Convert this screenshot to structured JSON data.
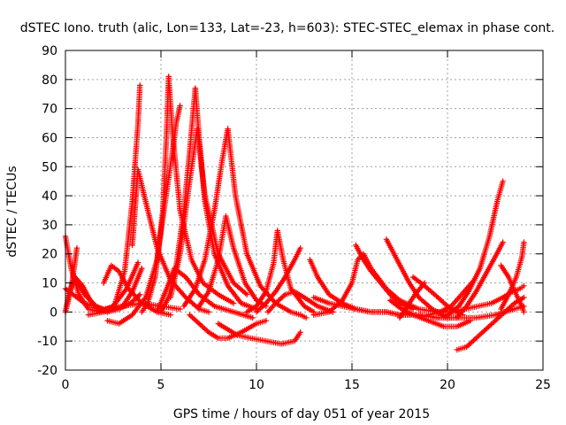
{
  "chart_data": {
    "type": "scatter",
    "title": "dSTEC Iono. truth (alic, Lon=133, Lat=-23, h=603): STEC-STEC_elemax in phase cont.",
    "xlabel": "GPS time / hours of day 051 of year 2015",
    "ylabel": "dSTEC  / TECUs",
    "xlim": [
      0,
      25
    ],
    "ylim": [
      -20,
      90
    ],
    "xticks": [
      0,
      5,
      10,
      15,
      20,
      25
    ],
    "yticks": [
      -20,
      -10,
      0,
      10,
      20,
      30,
      40,
      50,
      60,
      70,
      80,
      90
    ],
    "xtick_labels": [
      "0",
      "5",
      "10",
      "15",
      "20",
      "25"
    ],
    "ytick_labels": [
      "-20",
      "-10",
      "0",
      "10",
      "20",
      "30",
      "40",
      "50",
      "60",
      "70",
      "80",
      "90"
    ],
    "grid": true,
    "marker": "+",
    "color": "#ff0000",
    "series": [
      {
        "x": [
          0.0,
          0.3,
          0.7,
          1.2,
          1.8,
          2.5,
          3.2,
          3.8
        ],
        "y": [
          26,
          15,
          6,
          1,
          0,
          2,
          8,
          17
        ]
      },
      {
        "x": [
          0.0,
          0.2,
          0.5,
          0.9,
          1.3,
          1.7,
          2.2,
          2.8,
          3.4,
          3.9
        ],
        "y": [
          0,
          7,
          12,
          9,
          4,
          1,
          0,
          1,
          3,
          6
        ]
      },
      {
        "x": [
          0.0,
          0.3,
          0.6
        ],
        "y": [
          0,
          8,
          22
        ]
      },
      {
        "x": [
          0.4,
          1.0,
          1.6,
          2.2,
          2.6,
          3.1,
          3.5,
          3.8,
          3.9
        ],
        "y": [
          13,
          6,
          2,
          0,
          3,
          14,
          38,
          65,
          78
        ]
      },
      {
        "x": [
          0.0,
          1.0,
          2.0,
          3.0,
          3.5,
          4.0
        ],
        "y": [
          8,
          3,
          1,
          2,
          7,
          15
        ]
      },
      {
        "x": [
          2.0,
          2.4,
          2.8,
          3.3,
          4.0,
          4.8,
          5.5
        ],
        "y": [
          10,
          16,
          14,
          8,
          3,
          0,
          -1
        ]
      },
      {
        "x": [
          2.2,
          2.8,
          3.5,
          4.2,
          4.8,
          5.2,
          5.6,
          5.8,
          6.0
        ],
        "y": [
          -3,
          -4,
          -1,
          5,
          18,
          37,
          55,
          65,
          71
        ]
      },
      {
        "x": [
          3.5,
          3.8,
          4.2,
          4.8,
          5.5,
          6.3,
          7.0,
          7.5
        ],
        "y": [
          23,
          49,
          38,
          22,
          11,
          5,
          1,
          0
        ]
      },
      {
        "x": [
          1.2,
          2.0,
          3.0,
          4.0,
          5.0,
          6.0
        ],
        "y": [
          -1,
          0,
          2,
          3,
          2,
          1
        ]
      },
      {
        "x": [
          4.0,
          4.3,
          4.7,
          5.1,
          5.3,
          5.4
        ],
        "y": [
          0,
          3,
          12,
          35,
          62,
          81
        ]
      },
      {
        "x": [
          5.4,
          5.6,
          6.0,
          6.6,
          7.2,
          8.0,
          8.8
        ],
        "y": [
          81,
          62,
          35,
          18,
          10,
          6,
          3
        ]
      },
      {
        "x": [
          4.8,
          5.3,
          5.7,
          6.3,
          7.0,
          7.8,
          8.8,
          9.8
        ],
        "y": [
          0,
          8,
          15,
          12,
          6,
          2,
          0,
          -2
        ]
      },
      {
        "x": [
          5.0,
          5.4,
          5.8,
          6.2,
          6.5,
          6.7,
          6.8
        ],
        "y": [
          0,
          5,
          16,
          35,
          55,
          70,
          77
        ]
      },
      {
        "x": [
          6.8,
          7.0,
          7.3,
          7.8,
          8.5,
          9.2,
          10.0
        ],
        "y": [
          77,
          60,
          38,
          20,
          9,
          3,
          1
        ]
      },
      {
        "x": [
          5.5,
          6.0,
          6.5,
          6.9,
          7.3,
          8.0,
          8.8,
          9.5
        ],
        "y": [
          5,
          20,
          45,
          63,
          40,
          20,
          10,
          6
        ]
      },
      {
        "x": [
          6.5,
          7.0,
          7.5,
          8.0,
          8.5,
          9.2,
          10.0,
          10.5
        ],
        "y": [
          -1,
          -4,
          -7,
          -9,
          -9,
          -7,
          -4,
          -3
        ]
      },
      {
        "x": [
          6.2,
          6.8,
          7.3,
          7.8,
          8.2,
          8.5
        ],
        "y": [
          2,
          8,
          18,
          35,
          52,
          63
        ]
      },
      {
        "x": [
          8.5,
          8.9,
          9.5,
          10.2,
          11.0,
          11.8,
          12.3,
          12.6
        ],
        "y": [
          63,
          40,
          20,
          9,
          3,
          0,
          -1,
          -2
        ]
      },
      {
        "x": [
          7.0,
          7.5,
          8.0,
          8.4,
          8.8,
          9.4,
          10.0,
          10.5
        ],
        "y": [
          2,
          7,
          18,
          33,
          22,
          10,
          4,
          2
        ]
      },
      {
        "x": [
          8.0,
          8.5,
          9.0,
          9.7,
          10.5,
          11.3,
          12.0,
          12.3
        ],
        "y": [
          -4,
          -6,
          -8,
          -9,
          -10,
          -11,
          -10,
          -7
        ]
      },
      {
        "x": [
          9.5,
          10.0,
          10.5,
          10.9,
          11.1,
          11.4,
          11.8,
          12.5,
          13.0
        ],
        "y": [
          0,
          2,
          7,
          17,
          28,
          18,
          8,
          2,
          0
        ]
      },
      {
        "x": [
          10.0,
          10.5,
          11.0,
          11.5,
          12.0,
          12.3
        ],
        "y": [
          0,
          3,
          7,
          12,
          18,
          22
        ]
      },
      {
        "x": [
          10.6,
          11.0,
          11.5,
          12.0,
          12.5,
          13.2,
          14.0
        ],
        "y": [
          0,
          3,
          6,
          7,
          5,
          2,
          0
        ]
      },
      {
        "x": [
          12.8,
          13.2,
          13.8,
          14.5,
          15.2,
          16.0,
          16.8,
          17.5,
          18.5,
          19.5,
          20.5
        ],
        "y": [
          18,
          12,
          6,
          3,
          1,
          0,
          0,
          -1,
          -1,
          -2,
          -2
        ]
      },
      {
        "x": [
          13.0,
          13.8,
          14.5,
          15.0,
          15.3,
          15.6,
          16.0,
          16.8,
          17.5,
          18.5,
          19.5,
          20.5
        ],
        "y": [
          -1,
          0,
          4,
          10,
          18,
          20,
          15,
          8,
          4,
          1,
          0,
          0
        ]
      },
      {
        "x": [
          13.0,
          13.8,
          14.5,
          15.2,
          16.0,
          16.8,
          17.5,
          18.5,
          19.5,
          20.5,
          21.5,
          22.5,
          23.5,
          24.0
        ],
        "y": [
          5,
          3,
          2,
          1,
          0,
          0,
          -1,
          -1,
          -2,
          -2,
          -2,
          -1,
          1,
          2
        ]
      },
      {
        "x": [
          15.2,
          15.6,
          16.0,
          16.5,
          17.0,
          17.5,
          18.2
        ],
        "y": [
          23,
          18,
          14,
          10,
          6,
          3,
          1
        ]
      },
      {
        "x": [
          16.8,
          17.2,
          17.6,
          18.0,
          18.5,
          19.2,
          20.0
        ],
        "y": [
          25,
          20,
          15,
          10,
          5,
          1,
          -2
        ]
      },
      {
        "x": [
          17.0,
          17.6,
          18.2,
          19.0,
          19.8,
          20.5,
          21.2
        ],
        "y": [
          4,
          1,
          -1,
          -3,
          -5,
          -5,
          -3
        ]
      },
      {
        "x": [
          17.5,
          17.9,
          18.3,
          18.8
        ],
        "y": [
          -2,
          2,
          6,
          10
        ]
      },
      {
        "x": [
          18.2,
          18.8,
          19.5,
          20.0,
          20.5,
          20.8
        ],
        "y": [
          12,
          9,
          5,
          2,
          0,
          -1
        ]
      },
      {
        "x": [
          19.0,
          19.6,
          20.2,
          20.6,
          21.0,
          21.4
        ],
        "y": [
          -1,
          0,
          2,
          5,
          8,
          11
        ]
      },
      {
        "x": [
          20.5,
          21.0,
          21.5,
          22.0,
          22.5,
          23.0,
          23.5,
          24.0
        ],
        "y": [
          -13,
          -12,
          -9,
          -6,
          -3,
          0,
          3,
          5
        ]
      },
      {
        "x": [
          19.5,
          20.2,
          20.9,
          21.6,
          22.3,
          22.9,
          23.4,
          23.8,
          24.0
        ],
        "y": [
          0,
          0,
          1,
          2,
          3,
          5,
          7,
          8,
          9
        ]
      },
      {
        "x": [
          20.0,
          20.6,
          21.1,
          21.7,
          22.2,
          22.6,
          22.9
        ],
        "y": [
          -1,
          2,
          7,
          15,
          26,
          38,
          45
        ]
      },
      {
        "x": [
          20.5,
          21.0,
          21.5,
          22.0,
          22.5,
          22.9
        ],
        "y": [
          -2,
          2,
          7,
          13,
          19,
          24
        ]
      },
      {
        "x": [
          22.8,
          23.2,
          23.6,
          23.9,
          24.0
        ],
        "y": [
          16,
          12,
          6,
          2,
          0
        ]
      },
      {
        "x": [
          22.8,
          23.2,
          23.6,
          23.9,
          24.0
        ],
        "y": [
          1,
          6,
          12,
          19,
          24
        ]
      }
    ]
  }
}
